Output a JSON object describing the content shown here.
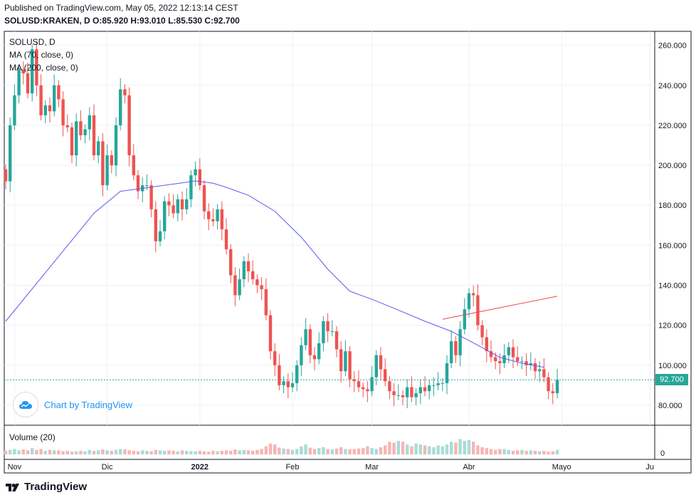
{
  "header": {
    "published": "Published on TradingView.com, May 05, 2022 12:13:14 CEST",
    "ohlc": "SOLUSD:KRAKEN, D  O:85.920 H:93.010 L:85.530 C:92.700"
  },
  "legend": {
    "symbol": "SOLUSD, D",
    "ma70": "MA (70, close, 0)",
    "ma200": "MA (200, close, 0)",
    "volume": "Volume (20)"
  },
  "badge": {
    "text": "Chart by TradingView"
  },
  "footer": {
    "brand": "TradingView"
  },
  "last_price_label": "92.700",
  "chart_data": {
    "type": "candlestick",
    "symbol": "SOLUSD",
    "interval": "D",
    "ylim": [
      70,
      267
    ],
    "y_ticks": [
      "80.000",
      "100.000",
      "120.000",
      "140.000",
      "160.000",
      "180.000",
      "200.000",
      "220.000",
      "240.000",
      "260.000"
    ],
    "x_ticks": [
      "Nov",
      "Dic",
      "2022",
      "Feb",
      "Mar",
      "Abr",
      "Mayo",
      "Ju"
    ],
    "last_price": 92.7,
    "up_color": "#26a69a",
    "down_color": "#ef5350",
    "ma70_color": "#5b5bf0",
    "ma200_color": "#f04a4a",
    "close": [
      192,
      220,
      235,
      248,
      246,
      236,
      258,
      240,
      225,
      230,
      227,
      240,
      233,
      220,
      219,
      205,
      222,
      215,
      218,
      225,
      205,
      212,
      190,
      205,
      200,
      220,
      238,
      235,
      205,
      195,
      187,
      190,
      190,
      178,
      162,
      167,
      182,
      180,
      176,
      183,
      178,
      183,
      195,
      198,
      190,
      177,
      173,
      172,
      178,
      168,
      158,
      145,
      135,
      143,
      152,
      147,
      143,
      140,
      138,
      125,
      107,
      100,
      90,
      92,
      89,
      91,
      100,
      110,
      118,
      105,
      103,
      111,
      122,
      117,
      117,
      108,
      97,
      107,
      93,
      92,
      89,
      88,
      87,
      94,
      105,
      98,
      92,
      87,
      85,
      85,
      84,
      89,
      84,
      86,
      89,
      87,
      90,
      90,
      91,
      91,
      101,
      112,
      105,
      118,
      128,
      136,
      135,
      120,
      114,
      107,
      104,
      102,
      101,
      105,
      109,
      104,
      102,
      102,
      100,
      101,
      97,
      98,
      94,
      87,
      86,
      92.7
    ],
    "ma70": [
      122,
      null,
      null,
      null,
      null,
      null,
      null,
      null,
      null,
      null,
      null,
      null,
      null,
      null,
      null,
      null,
      null,
      null,
      null,
      null,
      176,
      null,
      null,
      null,
      null,
      null,
      187,
      null,
      null,
      null,
      null,
      null,
      null,
      null,
      null,
      null,
      null,
      null,
      null,
      null,
      null,
      191.5,
      null,
      192.2,
      null,
      null,
      null,
      191,
      null,
      null,
      189,
      null,
      null,
      null,
      null,
      185,
      null,
      null,
      null,
      null,
      null,
      177,
      null,
      null,
      null,
      null,
      null,
      164,
      null,
      null,
      null,
      null,
      null,
      148,
      null,
      null,
      null,
      null,
      137,
      null,
      null,
      null,
      null,
      133,
      null,
      null,
      null,
      null,
      128.5,
      null,
      null,
      null,
      null,
      null,
      null,
      122,
      null,
      null,
      null,
      null,
      null,
      117,
      null,
      null,
      null,
      null,
      null,
      110,
      null,
      null,
      null,
      null,
      104,
      null,
      null,
      null,
      null,
      101,
      null,
      null,
      null,
      null,
      99
    ],
    "ma200": [
      {
        "i": 99,
        "v": 123
      },
      {
        "i": 125,
        "v": 134.5
      }
    ],
    "volume_ylim": [
      0,
      60
    ],
    "volume": [
      8,
      10,
      12,
      9,
      11,
      9,
      14,
      10,
      12,
      8,
      10,
      9,
      9,
      7,
      8,
      6,
      7,
      8,
      7,
      10,
      8,
      9,
      11,
      9,
      8,
      10,
      12,
      11,
      9,
      8,
      7,
      9,
      8,
      7,
      10,
      9,
      8,
      9,
      8,
      7,
      9,
      8,
      7,
      7,
      8,
      7,
      6,
      8,
      7,
      8,
      9,
      8,
      11,
      9,
      10,
      9,
      8,
      10,
      12,
      18,
      24,
      22,
      15,
      13,
      12,
      10,
      12,
      18,
      22,
      15,
      12,
      14,
      16,
      12,
      11,
      13,
      16,
      12,
      11,
      12,
      13,
      14,
      18,
      14,
      12,
      16,
      20,
      28,
      26,
      30,
      28,
      22,
      18,
      24,
      22,
      20,
      18,
      16,
      20,
      18,
      22,
      28,
      26,
      34,
      30,
      32,
      28,
      20,
      16,
      14,
      12,
      10,
      12,
      12,
      10,
      8,
      9,
      10,
      8,
      9,
      8,
      7,
      8,
      6,
      7,
      10
    ]
  }
}
